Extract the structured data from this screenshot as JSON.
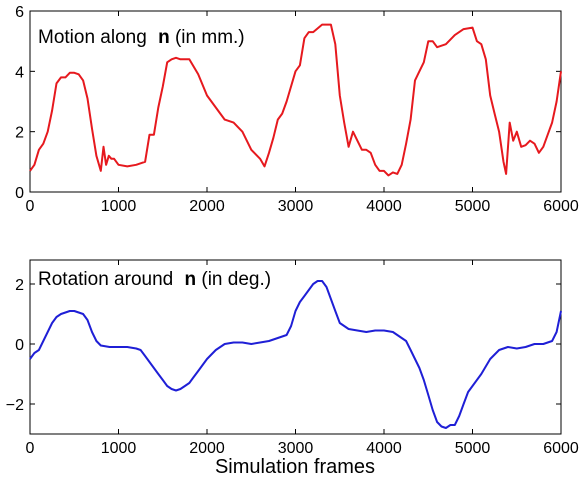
{
  "chart_data": [
    {
      "type": "line",
      "title_text": "Motion along ",
      "title_symbol": "n",
      "title_suffix": " (in mm.)",
      "xlabel": "",
      "ylabel": "",
      "xlim": [
        0,
        6000
      ],
      "ylim": [
        0,
        6
      ],
      "xticks": [
        0,
        1000,
        2000,
        3000,
        4000,
        5000,
        6000
      ],
      "yticks": [
        0,
        2,
        4,
        6
      ],
      "color": "#e6191e",
      "series": [
        {
          "x": [
            0,
            50,
            100,
            150,
            200,
            250,
            300,
            350,
            400,
            450,
            500,
            550,
            600,
            650,
            700,
            750,
            800,
            830,
            860,
            890,
            920,
            950,
            1000,
            1100,
            1200,
            1300,
            1350,
            1400,
            1450,
            1500,
            1550,
            1600,
            1650,
            1700,
            1800,
            1900,
            2000,
            2050,
            2100,
            2200,
            2300,
            2400,
            2500,
            2600,
            2650,
            2700,
            2750,
            2800,
            2850,
            2900,
            3000,
            3050,
            3100,
            3150,
            3200,
            3300,
            3400,
            3450,
            3500,
            3550,
            3600,
            3650,
            3700,
            3750,
            3800,
            3850,
            3900,
            3950,
            4000,
            4050,
            4100,
            4150,
            4200,
            4250,
            4300,
            4350,
            4400,
            4450,
            4500,
            4550,
            4600,
            4700,
            4800,
            4900,
            5000,
            5050,
            5100,
            5150,
            5200,
            5250,
            5300,
            5350,
            5380,
            5420,
            5460,
            5500,
            5550,
            5600,
            5650,
            5700,
            5750,
            5800,
            5850,
            5900,
            5950,
            6000
          ],
          "y": [
            0.7,
            0.9,
            1.4,
            1.6,
            2.0,
            2.7,
            3.6,
            3.8,
            3.8,
            3.95,
            3.95,
            3.9,
            3.7,
            3.1,
            2.1,
            1.2,
            0.7,
            1.5,
            0.9,
            1.2,
            1.1,
            1.1,
            0.9,
            0.85,
            0.9,
            1.0,
            1.9,
            1.9,
            2.8,
            3.5,
            4.3,
            4.4,
            4.45,
            4.4,
            4.4,
            3.9,
            3.2,
            3.0,
            2.8,
            2.4,
            2.3,
            2.0,
            1.4,
            1.1,
            0.85,
            1.3,
            1.8,
            2.4,
            2.6,
            3.0,
            4.0,
            4.2,
            5.1,
            5.3,
            5.3,
            5.55,
            5.55,
            4.9,
            3.2,
            2.3,
            1.5,
            2.0,
            1.7,
            1.4,
            1.4,
            1.3,
            0.9,
            0.7,
            0.7,
            0.55,
            0.65,
            0.6,
            0.9,
            1.6,
            2.4,
            3.7,
            4.0,
            4.3,
            5.0,
            5.0,
            4.8,
            4.9,
            5.2,
            5.4,
            5.45,
            5.0,
            4.9,
            4.4,
            3.2,
            2.6,
            2.0,
            1.0,
            0.6,
            2.3,
            1.7,
            2.0,
            1.5,
            1.55,
            1.7,
            1.6,
            1.3,
            1.5,
            1.9,
            2.3,
            3.0,
            4.0
          ]
        }
      ]
    },
    {
      "type": "line",
      "title_text": "Rotation around ",
      "title_symbol": "n",
      "title_suffix": " (in deg.)",
      "xlabel": "Simulation frames",
      "ylabel": "",
      "xlim": [
        0,
        6000
      ],
      "ylim": [
        -3,
        2.8
      ],
      "xticks": [
        0,
        1000,
        2000,
        3000,
        4000,
        5000,
        6000
      ],
      "yticks": [
        -2,
        0,
        2
      ],
      "color": "#1f1fd6",
      "series": [
        {
          "x": [
            0,
            50,
            100,
            150,
            200,
            250,
            300,
            350,
            400,
            450,
            500,
            550,
            600,
            650,
            700,
            750,
            800,
            900,
            1000,
            1100,
            1200,
            1250,
            1300,
            1350,
            1400,
            1450,
            1500,
            1550,
            1600,
            1650,
            1700,
            1750,
            1800,
            1850,
            1900,
            1950,
            2000,
            2100,
            2200,
            2300,
            2400,
            2500,
            2600,
            2700,
            2800,
            2900,
            2950,
            3000,
            3050,
            3100,
            3150,
            3200,
            3250,
            3300,
            3350,
            3400,
            3450,
            3500,
            3600,
            3700,
            3800,
            3900,
            4000,
            4100,
            4200,
            4250,
            4300,
            4350,
            4400,
            4450,
            4500,
            4550,
            4600,
            4650,
            4700,
            4750,
            4800,
            4850,
            4900,
            4950,
            5000,
            5100,
            5200,
            5300,
            5400,
            5500,
            5600,
            5700,
            5800,
            5900,
            5950,
            6000
          ],
          "y": [
            -0.5,
            -0.3,
            -0.2,
            0.1,
            0.4,
            0.7,
            0.9,
            1.0,
            1.05,
            1.1,
            1.1,
            1.05,
            1.0,
            0.8,
            0.4,
            0.1,
            -0.05,
            -0.1,
            -0.1,
            -0.1,
            -0.15,
            -0.2,
            -0.4,
            -0.6,
            -0.8,
            -1.0,
            -1.2,
            -1.4,
            -1.5,
            -1.55,
            -1.5,
            -1.4,
            -1.3,
            -1.1,
            -0.9,
            -0.7,
            -0.5,
            -0.2,
            0.0,
            0.05,
            0.05,
            0.0,
            0.05,
            0.1,
            0.2,
            0.3,
            0.6,
            1.1,
            1.4,
            1.6,
            1.8,
            2.0,
            2.1,
            2.1,
            1.9,
            1.5,
            1.1,
            0.7,
            0.5,
            0.45,
            0.4,
            0.45,
            0.45,
            0.4,
            0.2,
            0.1,
            -0.2,
            -0.5,
            -0.8,
            -1.2,
            -1.7,
            -2.2,
            -2.6,
            -2.75,
            -2.8,
            -2.7,
            -2.7,
            -2.4,
            -2.0,
            -1.6,
            -1.4,
            -1.0,
            -0.5,
            -0.2,
            -0.1,
            -0.15,
            -0.1,
            0.0,
            0.0,
            0.1,
            0.4,
            1.1
          ]
        }
      ]
    }
  ]
}
